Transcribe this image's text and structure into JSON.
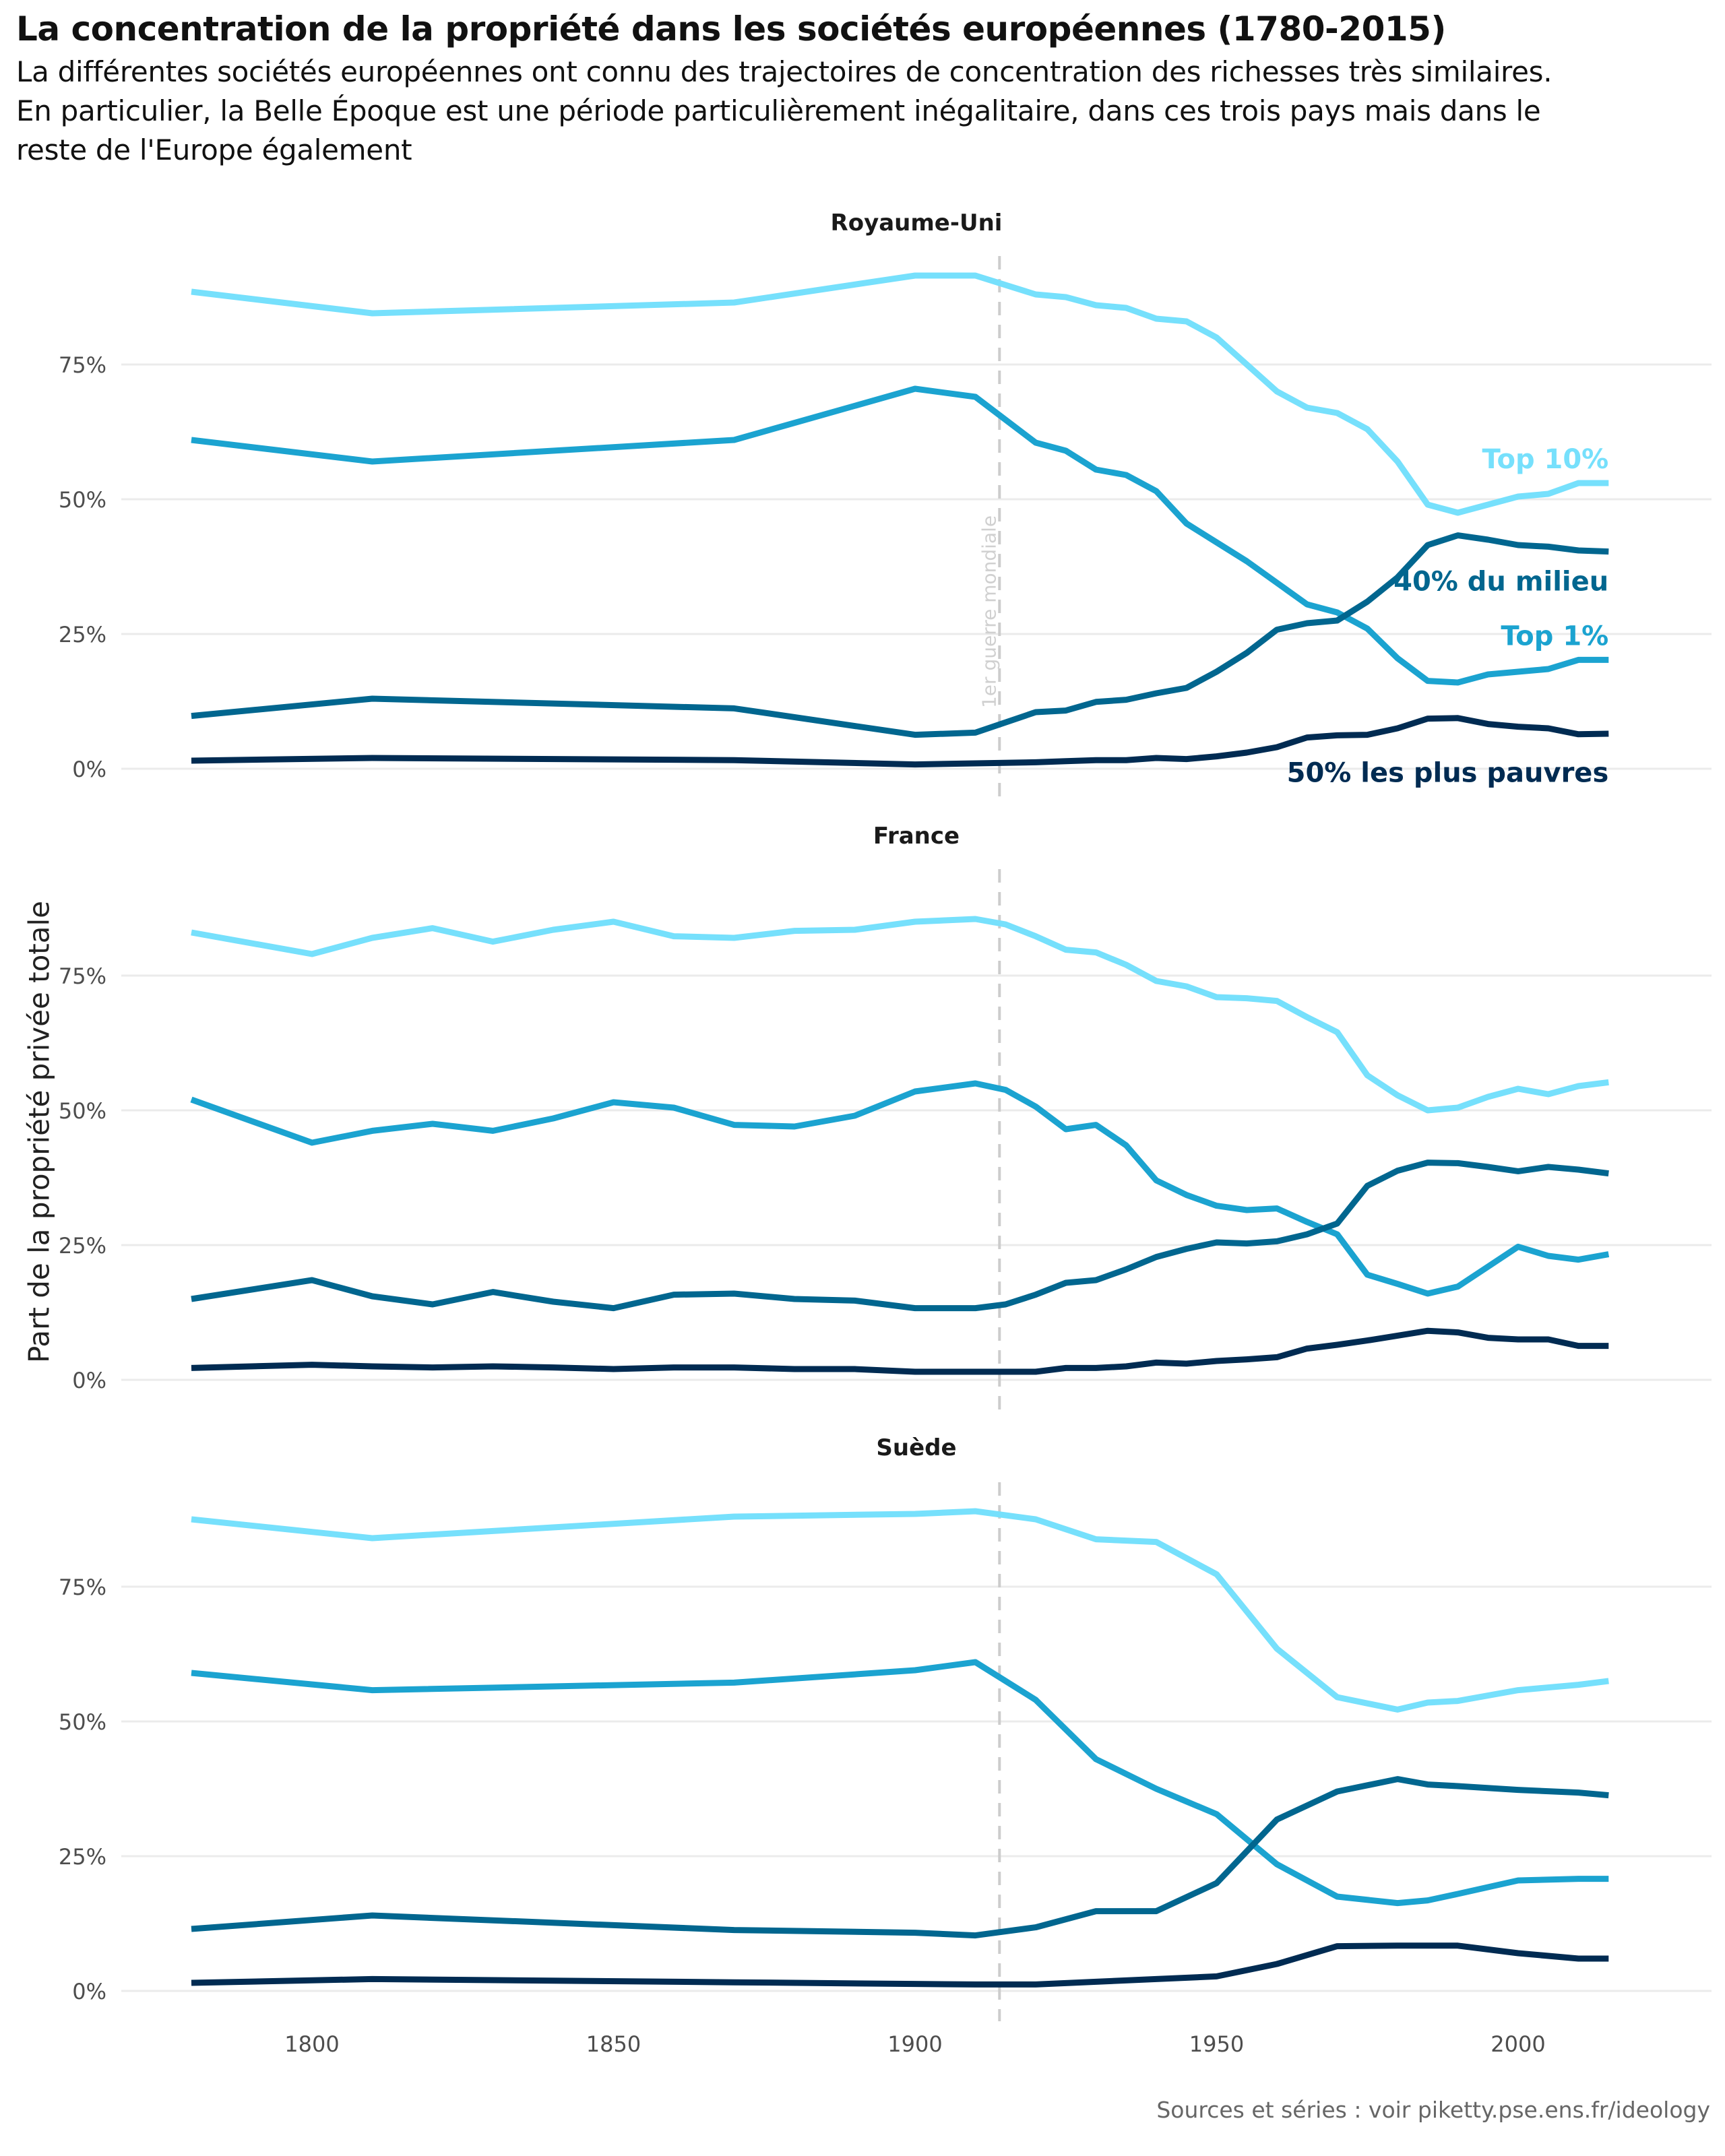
{
  "title": "La concentration de la propriété dans les sociétés européennes (1780-2015)",
  "subtitle_lines": [
    "La différentes sociétés européennes ont connu des trajectoires de concentration des richesses très similaires.",
    "En particulier, la Belle Époque est une période particulièrement inégalitaire, dans ces trois pays mais dans le",
    "reste de l'Europe également"
  ],
  "caption": "Sources et séries : voir piketty.pse.ens.fr/ideology",
  "chart_data": {
    "type": "line",
    "title": "La concentration de la propriété dans les sociétés européennes (1780-2015)",
    "xlabel": "",
    "ylabel": "Part de la propriété privée totale",
    "xlim": [
      1770,
      2025
    ],
    "ylim": [
      0,
      95
    ],
    "x_ticks": [
      1800,
      1850,
      1900,
      1950,
      2000
    ],
    "y_ticks": [
      0,
      25,
      50,
      75
    ],
    "y_tick_labels": [
      "0%",
      "25%",
      "50%",
      "75%"
    ],
    "grid": true,
    "annotation": {
      "x": 1914,
      "label": "1er guerre mondiale",
      "style": "dashed-vertical"
    },
    "series_styles": [
      {
        "key": "top10",
        "name": "Top 10%",
        "color": "#76E0FC"
      },
      {
        "key": "top1",
        "name": "Top 1%",
        "color": "#1BA3D0"
      },
      {
        "key": "mid40",
        "name": "40% du milieu",
        "color": "#01668F"
      },
      {
        "key": "bot50",
        "name": "50% les plus pauvres",
        "color": "#002B52"
      }
    ],
    "panels": [
      {
        "name": "Royaume-Uni",
        "show_labels": true,
        "series": {
          "top10": {
            "x": [
              1780,
              1810,
              1870,
              1900,
              1910,
              1920,
              1925,
              1930,
              1935,
              1940,
              1945,
              1950,
              1955,
              1960,
              1965,
              1970,
              1975,
              1980,
              1985,
              1990,
              1995,
              2000,
              2005,
              2010,
              2015
            ],
            "y": [
              88.5,
              84.5,
              86.5,
              91.5,
              91.5,
              88,
              87.5,
              86,
              85.5,
              83.5,
              83,
              80,
              75,
              70,
              67,
              66,
              63,
              57,
              49,
              47.5,
              49,
              50.5,
              51,
              53,
              53
            ]
          },
          "top1": {
            "x": [
              1780,
              1810,
              1870,
              1900,
              1910,
              1920,
              1925,
              1930,
              1935,
              1940,
              1945,
              1950,
              1955,
              1960,
              1965,
              1970,
              1975,
              1980,
              1985,
              1990,
              1995,
              2000,
              2005,
              2010,
              2015
            ],
            "y": [
              61,
              57,
              61,
              70.5,
              69,
              60.5,
              59,
              55.5,
              54.5,
              51.5,
              45.5,
              42,
              38.5,
              34.5,
              30.5,
              29,
              26,
              20.5,
              16.3,
              16,
              17.5,
              18,
              18.5,
              20.2,
              20.2
            ]
          },
          "mid40": {
            "x": [
              1780,
              1810,
              1870,
              1900,
              1910,
              1920,
              1925,
              1930,
              1935,
              1940,
              1945,
              1950,
              1955,
              1960,
              1965,
              1970,
              1975,
              1980,
              1985,
              1990,
              1995,
              2000,
              2005,
              2010,
              2015
            ],
            "y": [
              9.8,
              13,
              11.2,
              6.3,
              6.7,
              10.5,
              10.8,
              12.4,
              12.8,
              14,
              15,
              18,
              21.5,
              25.8,
              27,
              27.5,
              31,
              35.5,
              41.5,
              43.3,
              42.5,
              41.5,
              41.2,
              40.5,
              40.3
            ]
          },
          "bot50": {
            "x": [
              1780,
              1810,
              1870,
              1900,
              1910,
              1920,
              1925,
              1930,
              1935,
              1940,
              1945,
              1950,
              1955,
              1960,
              1965,
              1970,
              1975,
              1980,
              1985,
              1990,
              1995,
              2000,
              2005,
              2010,
              2015
            ],
            "y": [
              1.5,
              2,
              1.6,
              0.8,
              1,
              1.2,
              1.4,
              1.6,
              1.6,
              2,
              1.8,
              2.3,
              3,
              4,
              5.8,
              6.2,
              6.3,
              7.5,
              9.3,
              9.4,
              8.3,
              7.8,
              7.5,
              6.4,
              6.5
            ]
          }
        }
      },
      {
        "name": "France",
        "show_labels": false,
        "series": {
          "top10": {
            "x": [
              1780,
              1800,
              1810,
              1820,
              1830,
              1840,
              1850,
              1860,
              1870,
              1880,
              1890,
              1900,
              1910,
              1915,
              1920,
              1925,
              1930,
              1935,
              1940,
              1945,
              1950,
              1955,
              1960,
              1965,
              1970,
              1975,
              1980,
              1985,
              1990,
              1995,
              2000,
              2005,
              2010,
              2015
            ],
            "y": [
              83,
              79,
              82,
              83.8,
              81.3,
              83.5,
              85,
              82.3,
              82,
              83.3,
              83.5,
              85,
              85.5,
              84.5,
              82.3,
              79.8,
              79.3,
              77,
              74,
              73,
              71,
              70.8,
              70.3,
              67.3,
              64.5,
              56.5,
              52.8,
              50,
              50.5,
              52.5,
              54,
              53,
              54.5,
              55.2
            ]
          },
          "top1": {
            "x": [
              1780,
              1800,
              1810,
              1820,
              1830,
              1840,
              1850,
              1860,
              1870,
              1880,
              1890,
              1900,
              1910,
              1915,
              1920,
              1925,
              1930,
              1935,
              1940,
              1945,
              1950,
              1955,
              1960,
              1965,
              1970,
              1975,
              1980,
              1985,
              1990,
              1995,
              2000,
              2005,
              2010,
              2015
            ],
            "y": [
              52,
              44,
              46.2,
              47.5,
              46.2,
              48.5,
              51.5,
              50.5,
              47.3,
              47,
              49,
              53.5,
              55,
              53.8,
              50.7,
              46.5,
              47.3,
              43.5,
              37,
              34.3,
              32.3,
              31.5,
              31.8,
              29.3,
              27,
              19.5,
              17.8,
              16,
              17.3,
              21,
              24.7,
              23,
              22.3,
              23.3
            ]
          },
          "mid40": {
            "x": [
              1780,
              1800,
              1810,
              1820,
              1830,
              1840,
              1850,
              1860,
              1870,
              1880,
              1890,
              1900,
              1910,
              1915,
              1920,
              1925,
              1930,
              1935,
              1940,
              1945,
              1950,
              1955,
              1960,
              1965,
              1970,
              1975,
              1980,
              1985,
              1990,
              1995,
              2000,
              2005,
              2010,
              2015
            ],
            "y": [
              15,
              18.5,
              15.5,
              14,
              16.3,
              14.5,
              13.3,
              15.8,
              16,
              15,
              14.7,
              13.3,
              13.3,
              14,
              15.8,
              18,
              18.5,
              20.5,
              22.8,
              24.3,
              25.5,
              25.3,
              25.7,
              27,
              29,
              36,
              38.8,
              40.3,
              40.2,
              39.5,
              38.7,
              39.5,
              39,
              38.3
            ]
          },
          "bot50": {
            "x": [
              1780,
              1800,
              1810,
              1820,
              1830,
              1840,
              1850,
              1860,
              1870,
              1880,
              1890,
              1900,
              1910,
              1915,
              1920,
              1925,
              1930,
              1935,
              1940,
              1945,
              1950,
              1955,
              1960,
              1965,
              1970,
              1975,
              1980,
              1985,
              1990,
              1995,
              2000,
              2005,
              2010,
              2015
            ],
            "y": [
              2.2,
              2.8,
              2.5,
              2.3,
              2.5,
              2.3,
              2,
              2.3,
              2.3,
              2,
              2,
              1.5,
              1.5,
              1.5,
              1.5,
              2.2,
              2.2,
              2.5,
              3.2,
              3,
              3.5,
              3.8,
              4.2,
              5.8,
              6.5,
              7.3,
              8.2,
              9.1,
              8.8,
              7.8,
              7.5,
              7.5,
              6.3,
              6.3
            ]
          }
        }
      },
      {
        "name": "Suède",
        "show_labels": false,
        "series": {
          "top10": {
            "x": [
              1780,
              1810,
              1870,
              1900,
              1910,
              1920,
              1930,
              1940,
              1950,
              1960,
              1970,
              1980,
              1985,
              1990,
              2000,
              2010,
              2015
            ],
            "y": [
              87.5,
              84,
              88,
              88.5,
              89,
              87.5,
              83.8,
              83.3,
              77.3,
              63.5,
              54.5,
              52.2,
              53.5,
              53.8,
              55.8,
              56.8,
              57.5
            ]
          },
          "top1": {
            "x": [
              1780,
              1810,
              1870,
              1900,
              1910,
              1920,
              1930,
              1940,
              1950,
              1960,
              1970,
              1980,
              1985,
              1990,
              2000,
              2010,
              2015
            ],
            "y": [
              59,
              55.8,
              57.2,
              59.5,
              61,
              54,
              43,
              37.5,
              32.8,
              23.5,
              17.5,
              16.3,
              16.8,
              18,
              20.5,
              20.8,
              20.8
            ]
          },
          "mid40": {
            "x": [
              1780,
              1810,
              1870,
              1900,
              1910,
              1920,
              1930,
              1940,
              1950,
              1960,
              1970,
              1980,
              1985,
              1990,
              2000,
              2010,
              2015
            ],
            "y": [
              11.5,
              14,
              11.3,
              10.8,
              10.3,
              11.8,
              14.8,
              14.8,
              20,
              31.8,
              37,
              39.3,
              38.3,
              38,
              37.3,
              36.8,
              36.3
            ]
          },
          "bot50": {
            "x": [
              1780,
              1810,
              1870,
              1900,
              1910,
              1920,
              1930,
              1940,
              1950,
              1960,
              1970,
              1980,
              1985,
              1990,
              2000,
              2010,
              2015
            ],
            "y": [
              1.5,
              2.2,
              1.6,
              1.3,
              1.2,
              1.2,
              1.7,
              2.2,
              2.7,
              5,
              8.3,
              8.4,
              8.4,
              8.4,
              7,
              6,
              6
            ]
          }
        }
      }
    ]
  }
}
